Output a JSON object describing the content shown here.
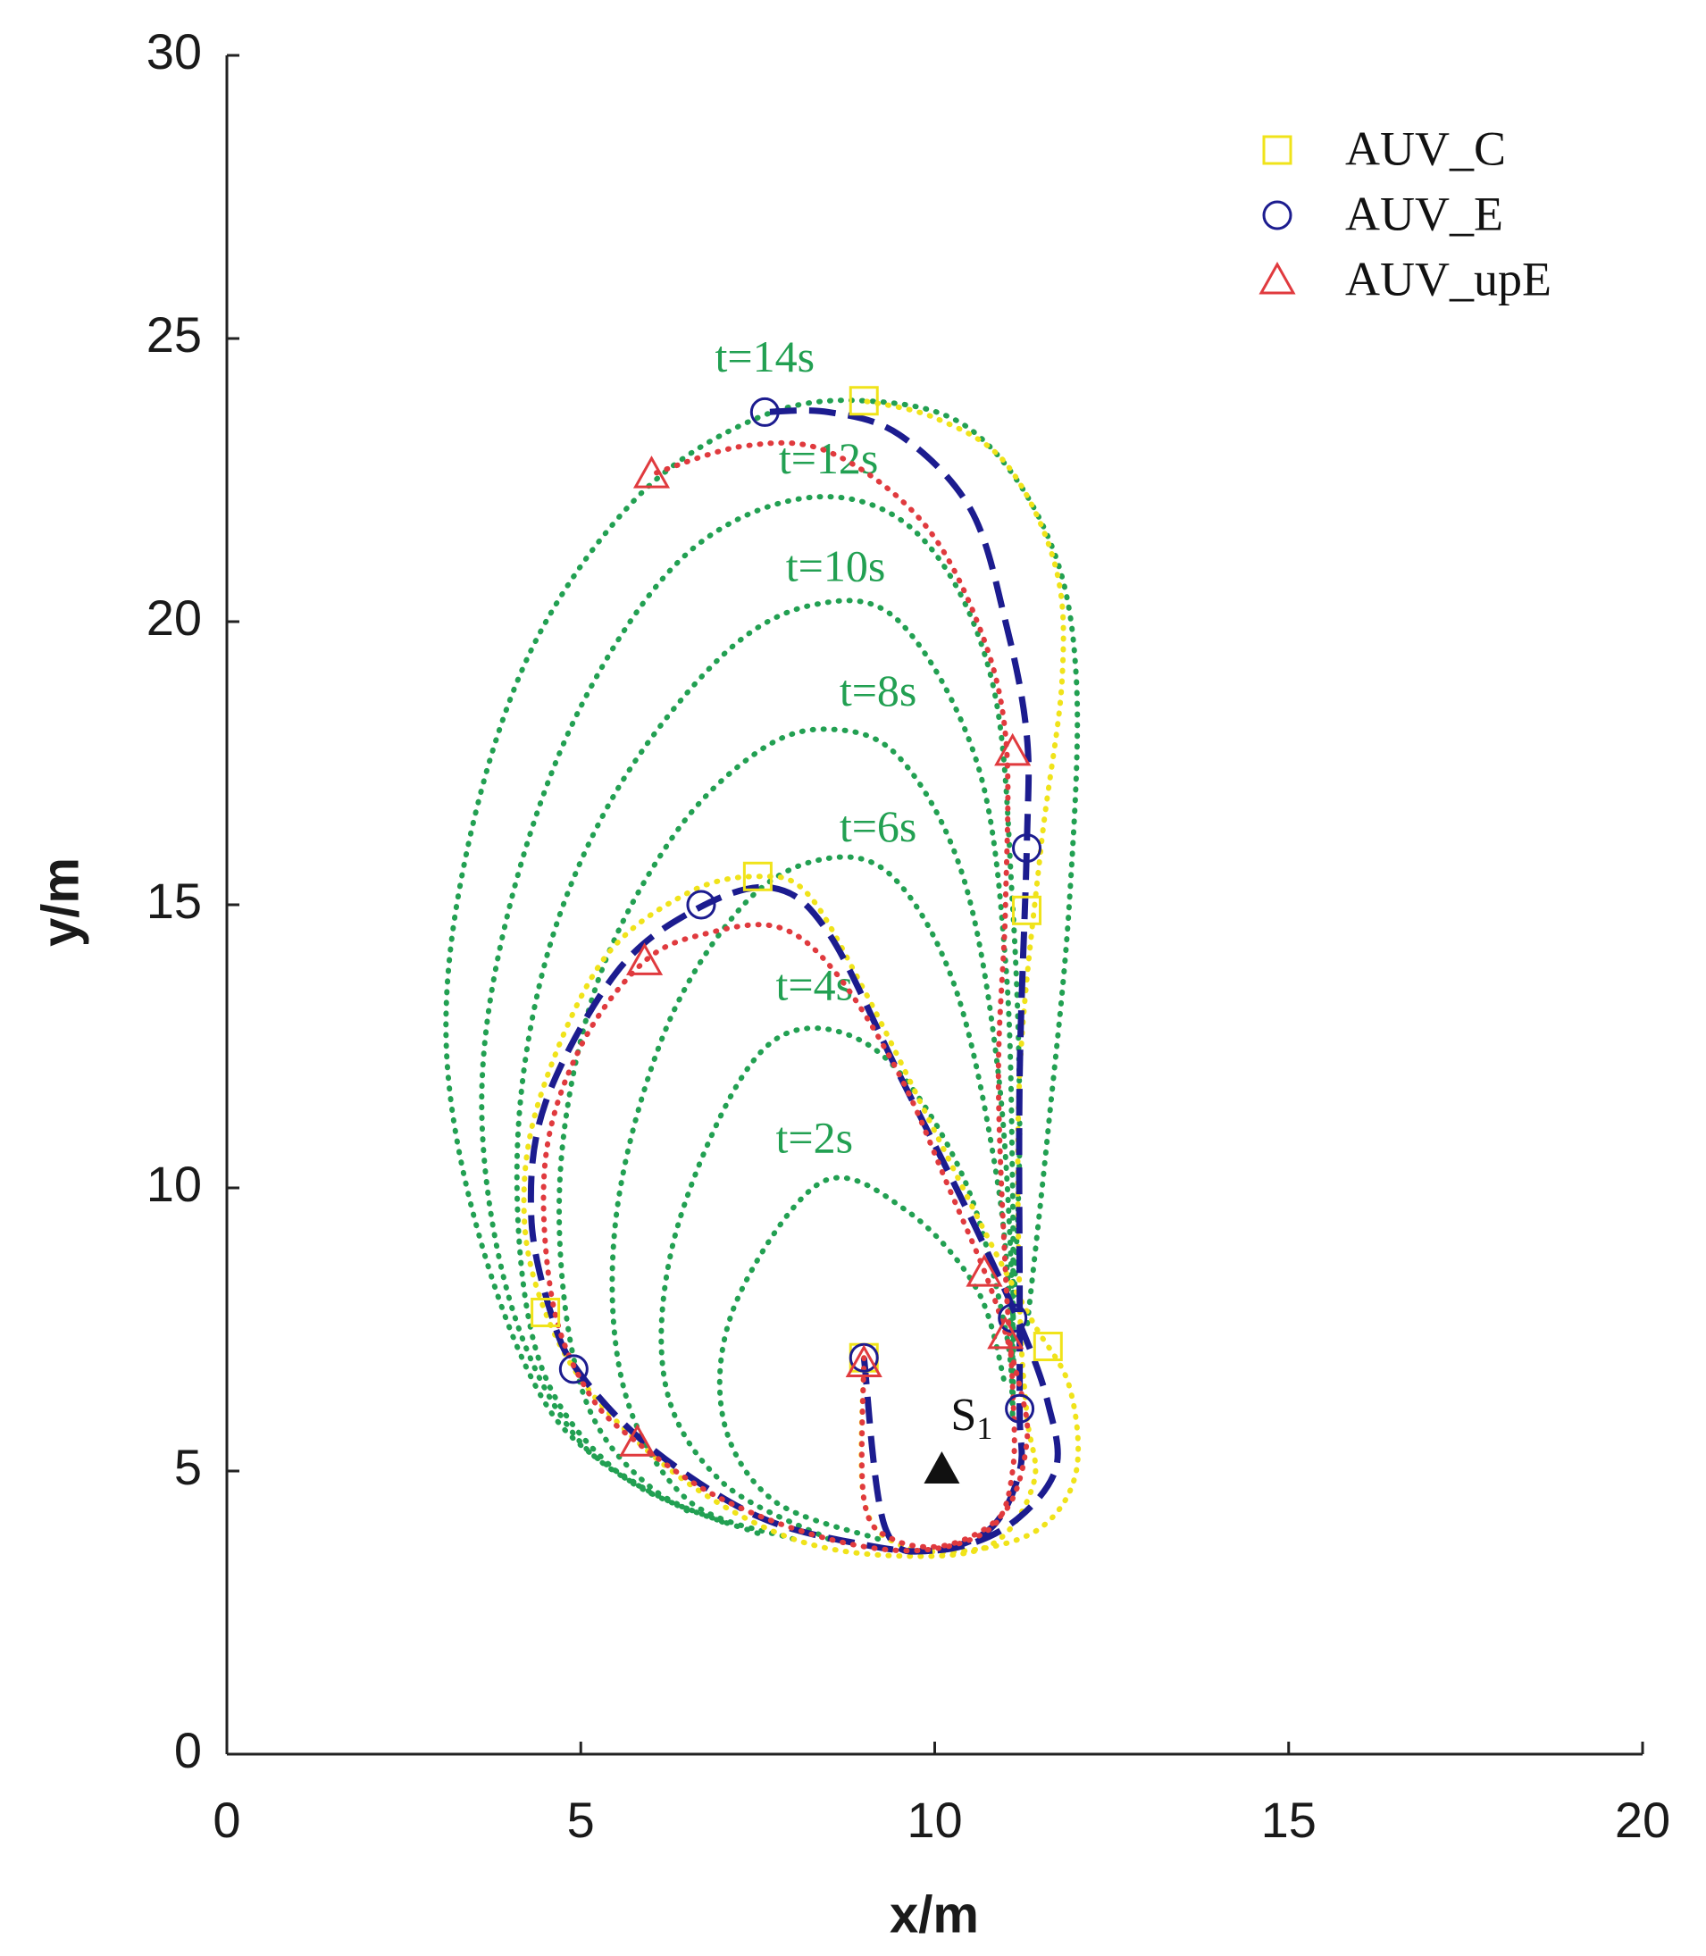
{
  "chart_data": {
    "type": "trajectory",
    "xlabel": "x/m",
    "ylabel": "y/m",
    "xlim": [
      0,
      20
    ],
    "ylim": [
      0,
      30
    ],
    "xticks": [
      0,
      5,
      10,
      15,
      20
    ],
    "yticks": [
      0,
      5,
      10,
      15,
      20,
      25,
      30
    ],
    "grid": false,
    "legend": "upper right",
    "series": [
      {
        "name": "AUV_C",
        "color": "#f0e31a",
        "style": "dotted",
        "marker": "square",
        "x": [
          9,
          9,
          9.5,
          10.5,
          11.5,
          12,
          11.9,
          11.4,
          10.8,
          10,
          9,
          8.2,
          7.5,
          6.5,
          5.3,
          4.4,
          4.2,
          4.5,
          5.2,
          6.5,
          8,
          9.5,
          10.8,
          11.4,
          11.3,
          11.2,
          11.2,
          11.5,
          11.8,
          11.7,
          11,
          10,
          9
        ],
        "y": [
          7,
          4.5,
          3.7,
          3.6,
          4,
          5,
          6.5,
          7.6,
          9,
          11,
          13.5,
          15.2,
          15.5,
          15.2,
          14,
          11.5,
          9.5,
          7.8,
          6.3,
          4.8,
          3.8,
          3.5,
          3.7,
          4.8,
          6,
          8,
          12,
          16,
          19,
          21,
          22.8,
          23.6,
          23.9
        ],
        "marker_x": [
          9,
          11.6,
          4.5,
          7.5,
          11.3,
          9
        ],
        "marker_y": [
          7,
          7.2,
          7.8,
          15.5,
          14.9,
          23.9
        ]
      },
      {
        "name": "AUV_E",
        "color": "#1c1c8f",
        "style": "dashed",
        "marker": "circle",
        "x": [
          9,
          9.3,
          10,
          11,
          11.7,
          11.6,
          11.2,
          10.5,
          9.5,
          8.5,
          7.7,
          6.6,
          5.5,
          4.5,
          4.3,
          4.6,
          5,
          6,
          7.5,
          9,
          10,
          10.8,
          11.2,
          11.2,
          11.2,
          11.2,
          11.3,
          11.3,
          11,
          10.5,
          9.5,
          8.5,
          7.6
        ],
        "y": [
          7,
          4,
          3.6,
          4,
          5,
          6.2,
          7.6,
          9.5,
          12,
          14.5,
          15.3,
          14.9,
          13.8,
          11.5,
          9.5,
          7.7,
          6.7,
          5.4,
          4.2,
          3.7,
          3.6,
          4,
          5,
          6,
          8,
          12,
          16,
          18,
          20,
          22,
          23.3,
          23.7,
          23.7
        ],
        "marker_x": [
          9,
          11.2,
          11.1,
          4.9,
          6.7,
          11.3,
          7.6
        ],
        "marker_y": [
          7,
          6.1,
          7.7,
          6.8,
          15,
          16,
          23.7
        ]
      },
      {
        "name": "AUV_upE",
        "color": "#e03a3e",
        "style": "dotted",
        "marker": "triangle",
        "x": [
          9,
          9,
          9.4,
          10.2,
          11,
          11.3,
          11.2,
          10.8,
          10.2,
          9.5,
          8.6,
          7.8,
          6.8,
          5.9,
          5,
          4.5,
          4.6,
          5.1,
          5.8,
          7,
          8.5,
          9.8,
          10.8,
          11.1,
          11.1,
          11,
          10.9,
          11,
          11,
          10.6,
          9.8,
          8.5,
          7.3,
          6
        ],
        "y": [
          7,
          4.5,
          3.8,
          3.7,
          4.3,
          5.5,
          6.5,
          8.2,
          10,
          12,
          13.8,
          14.6,
          14.5,
          14,
          12.5,
          10.5,
          8,
          6.4,
          5.5,
          4.5,
          3.8,
          3.6,
          4,
          5,
          6.5,
          8.5,
          12,
          15,
          18,
          20,
          21.8,
          23,
          23.1,
          22.6
        ],
        "marker_x": [
          9,
          11,
          10.7,
          5.8,
          5.9,
          11.1,
          6
        ],
        "marker_y": [
          6.9,
          7.4,
          8.5,
          5.5,
          14,
          17.7,
          22.6
        ]
      }
    ],
    "contours": {
      "color": "#22a052",
      "lines": [
        {
          "label": "t=2s",
          "label_x": 8.3,
          "label_y": 10.8,
          "x": [
            9.2,
            7.7,
            7,
            7.2,
            8.4,
            9.6,
            10.6,
            11
          ],
          "y": [
            3.8,
            4.5,
            6,
            8,
            10.1,
            9.6,
            8.2,
            6.5
          ]
        },
        {
          "label": "t=4s",
          "label_x": 8.3,
          "label_y": 13.5,
          "x": [
            8.5,
            7,
            6.2,
            6.3,
            7.2,
            8.1,
            9.3,
            10.4,
            11,
            11.1
          ],
          "y": [
            3.8,
            4.8,
            6.5,
            9,
            11.8,
            12.8,
            12.3,
            10.2,
            7.5,
            6
          ]
        },
        {
          "label": "t=6s",
          "label_x": 9.2,
          "label_y": 16.3,
          "x": [
            8,
            6.5,
            5.6,
            5.5,
            6.2,
            7.3,
            8.4,
            9.4,
            10.3,
            10.9,
            11.1
          ],
          "y": [
            3.8,
            4.5,
            6.5,
            9.5,
            12.8,
            15,
            15.8,
            15.5,
            13.5,
            10,
            7
          ]
        },
        {
          "label": "t=8s",
          "label_x": 9.2,
          "label_y": 18.7,
          "x": [
            7.5,
            6,
            5,
            4.7,
            5.2,
            6.3,
            7.5,
            8.5,
            9.5,
            10.4,
            10.9,
            11.1,
            11.1
          ],
          "y": [
            3.9,
            4.7,
            6.5,
            10,
            13.5,
            16.2,
            17.7,
            18.1,
            17.6,
            15.5,
            12,
            8,
            6
          ]
        },
        {
          "label": "t=10s",
          "label_x": 8.6,
          "label_y": 20.9,
          "x": [
            7,
            5.5,
            4.4,
            4.1,
            4.5,
            5.5,
            7,
            8.3,
            9.5,
            10.6,
            11,
            11.1,
            11.1
          ],
          "y": [
            4.1,
            5,
            7,
            10.5,
            14,
            17,
            19.4,
            20.3,
            20,
            17.5,
            14,
            10,
            7
          ]
        },
        {
          "label": "t=12s",
          "label_x": 8.5,
          "label_y": 22.8,
          "x": [
            6.5,
            5,
            4,
            3.6,
            4,
            5,
            6.5,
            8.3,
            9.8,
            10.8,
            11.1,
            11.2,
            11.1
          ],
          "y": [
            4.3,
            5.5,
            8,
            11.5,
            15,
            18.5,
            21.2,
            22.2,
            21.5,
            19,
            15,
            11,
            7.5
          ]
        },
        {
          "label": "t=14s",
          "label_x": 7.6,
          "label_y": 24.6,
          "x": [
            6,
            4.6,
            3.6,
            3.1,
            3.4,
            4.3,
            5.8,
            7.5,
            9,
            10.5,
            11.6,
            12,
            11.9,
            11.6,
            11.3
          ],
          "y": [
            4.6,
            6,
            9,
            12.5,
            16,
            19.5,
            22.2,
            23.6,
            23.9,
            23.4,
            21.5,
            19,
            15,
            11,
            7.5
          ]
        }
      ]
    },
    "source": {
      "name": "S",
      "sub": "1",
      "x": 10.1,
      "y": 5,
      "color": "#111111"
    }
  }
}
